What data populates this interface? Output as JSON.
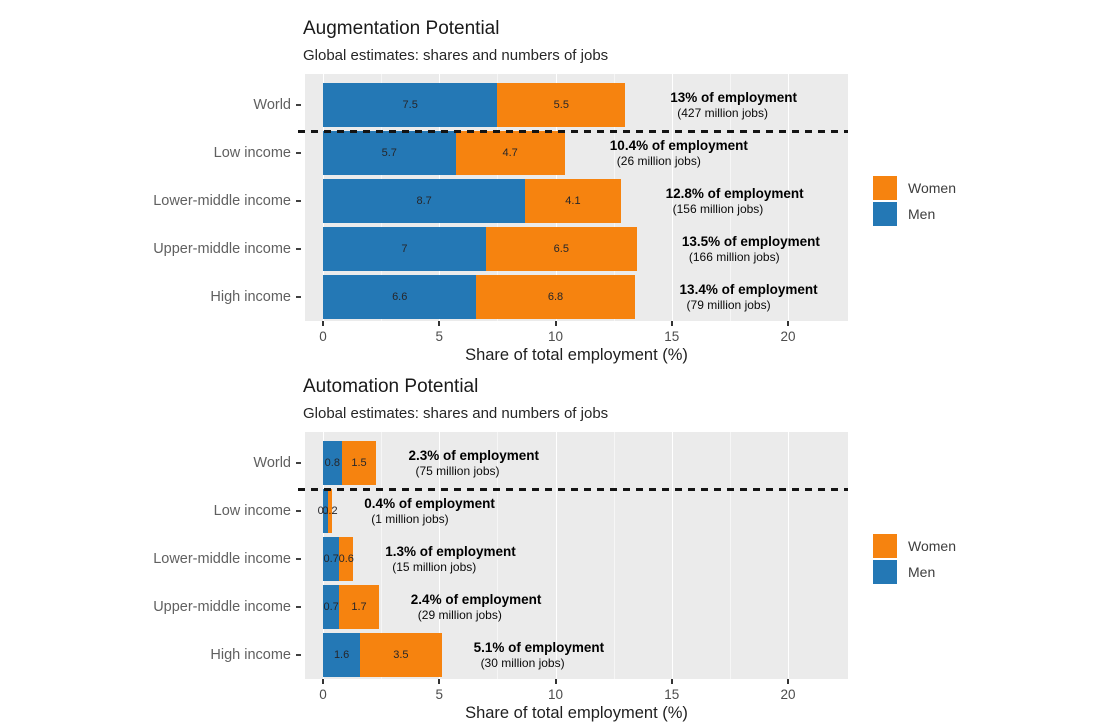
{
  "colors": {
    "women": "#F6830F",
    "men": "#2478B5",
    "plot_background": "#EBEBEB",
    "gridline": "#FFFFFF",
    "separator": "#141414",
    "title_text": "#1A1A1A",
    "category_text": "#606060",
    "tick_text": "#4D4D4D",
    "bar_label_text": "#26262A",
    "annotation_text": "#000000"
  },
  "legend": {
    "items": [
      {
        "label": "Women",
        "key": "women"
      },
      {
        "label": "Men",
        "key": "men"
      }
    ]
  },
  "chart_data": [
    {
      "id": "augmentation-potential",
      "type": "bar",
      "orientation": "horizontal",
      "stacked": true,
      "title": "Augmentation Potential",
      "subtitle": "Global estimates: shares and numbers of jobs",
      "xlabel": "Share of total employment (%)",
      "xlim": [
        0,
        22.5
      ],
      "xticks": [
        0,
        5,
        10,
        15,
        20
      ],
      "grid": true,
      "legend_position": "right",
      "categories": [
        "World",
        "Low income",
        "Lower-middle income",
        "Upper-middle income",
        "High income"
      ],
      "series": [
        {
          "name": "Men",
          "color": "#2478B5",
          "values": [
            7.5,
            5.7,
            8.7,
            7,
            6.6
          ],
          "labels": [
            "7.5",
            "5.7",
            "8.7",
            "7",
            "6.6"
          ]
        },
        {
          "name": "Women",
          "color": "#F6830F",
          "values": [
            5.5,
            4.7,
            4.1,
            6.5,
            6.8
          ],
          "labels": [
            "5.5",
            "4.7",
            "4.1",
            "6.5",
            "6.8"
          ]
        }
      ],
      "totals": [
        13,
        10.4,
        12.8,
        13.5,
        13.4
      ],
      "annotations": [
        {
          "line1": "13% of employment",
          "line2": "(427 million jobs)"
        },
        {
          "line1": "10.4% of employment",
          "line2": "(26 million jobs)"
        },
        {
          "line1": "12.8% of employment",
          "line2": "(156 million jobs)"
        },
        {
          "line1": "13.5% of employment",
          "line2": "(166 million jobs)"
        },
        {
          "line1": "13.4% of employment",
          "line2": "(79 million jobs)"
        }
      ],
      "separator_after_category": "World"
    },
    {
      "id": "automation-potential",
      "type": "bar",
      "orientation": "horizontal",
      "stacked": true,
      "title": "Automation Potential",
      "subtitle": "Global estimates: shares and numbers of jobs",
      "xlabel": "Share of total employment (%)",
      "xlim": [
        0,
        22.5
      ],
      "xticks": [
        0,
        5,
        10,
        15,
        20
      ],
      "grid": true,
      "legend_position": "right",
      "categories": [
        "World",
        "Low income",
        "Lower-middle income",
        "Upper-middle income",
        "High income"
      ],
      "series": [
        {
          "name": "Men",
          "color": "#2478B5",
          "values": [
            0.8,
            0.2,
            0.7,
            0.7,
            1.6
          ],
          "labels": [
            "0.8",
            "0.2",
            "0.7",
            "0.7",
            "1.6"
          ]
        },
        {
          "name": "Women",
          "color": "#F6830F",
          "values": [
            1.5,
            0.2,
            0.6,
            1.7,
            3.5
          ],
          "labels": [
            "1.5",
            "0.2",
            "0.6",
            "1.7",
            "3.5"
          ]
        }
      ],
      "totals": [
        2.3,
        0.4,
        1.3,
        2.4,
        5.1
      ],
      "annotations": [
        {
          "line1": "2.3% of employment",
          "line2": "(75 million jobs)"
        },
        {
          "line1": "0.4% of employment",
          "line2": "(1 million jobs)"
        },
        {
          "line1": "1.3% of employment",
          "line2": "(15 million jobs)"
        },
        {
          "line1": "2.4% of employment",
          "line2": "(29 million jobs)"
        },
        {
          "line1": "5.1% of employment",
          "line2": "(30 million jobs)"
        }
      ],
      "separator_after_category": "World"
    }
  ]
}
